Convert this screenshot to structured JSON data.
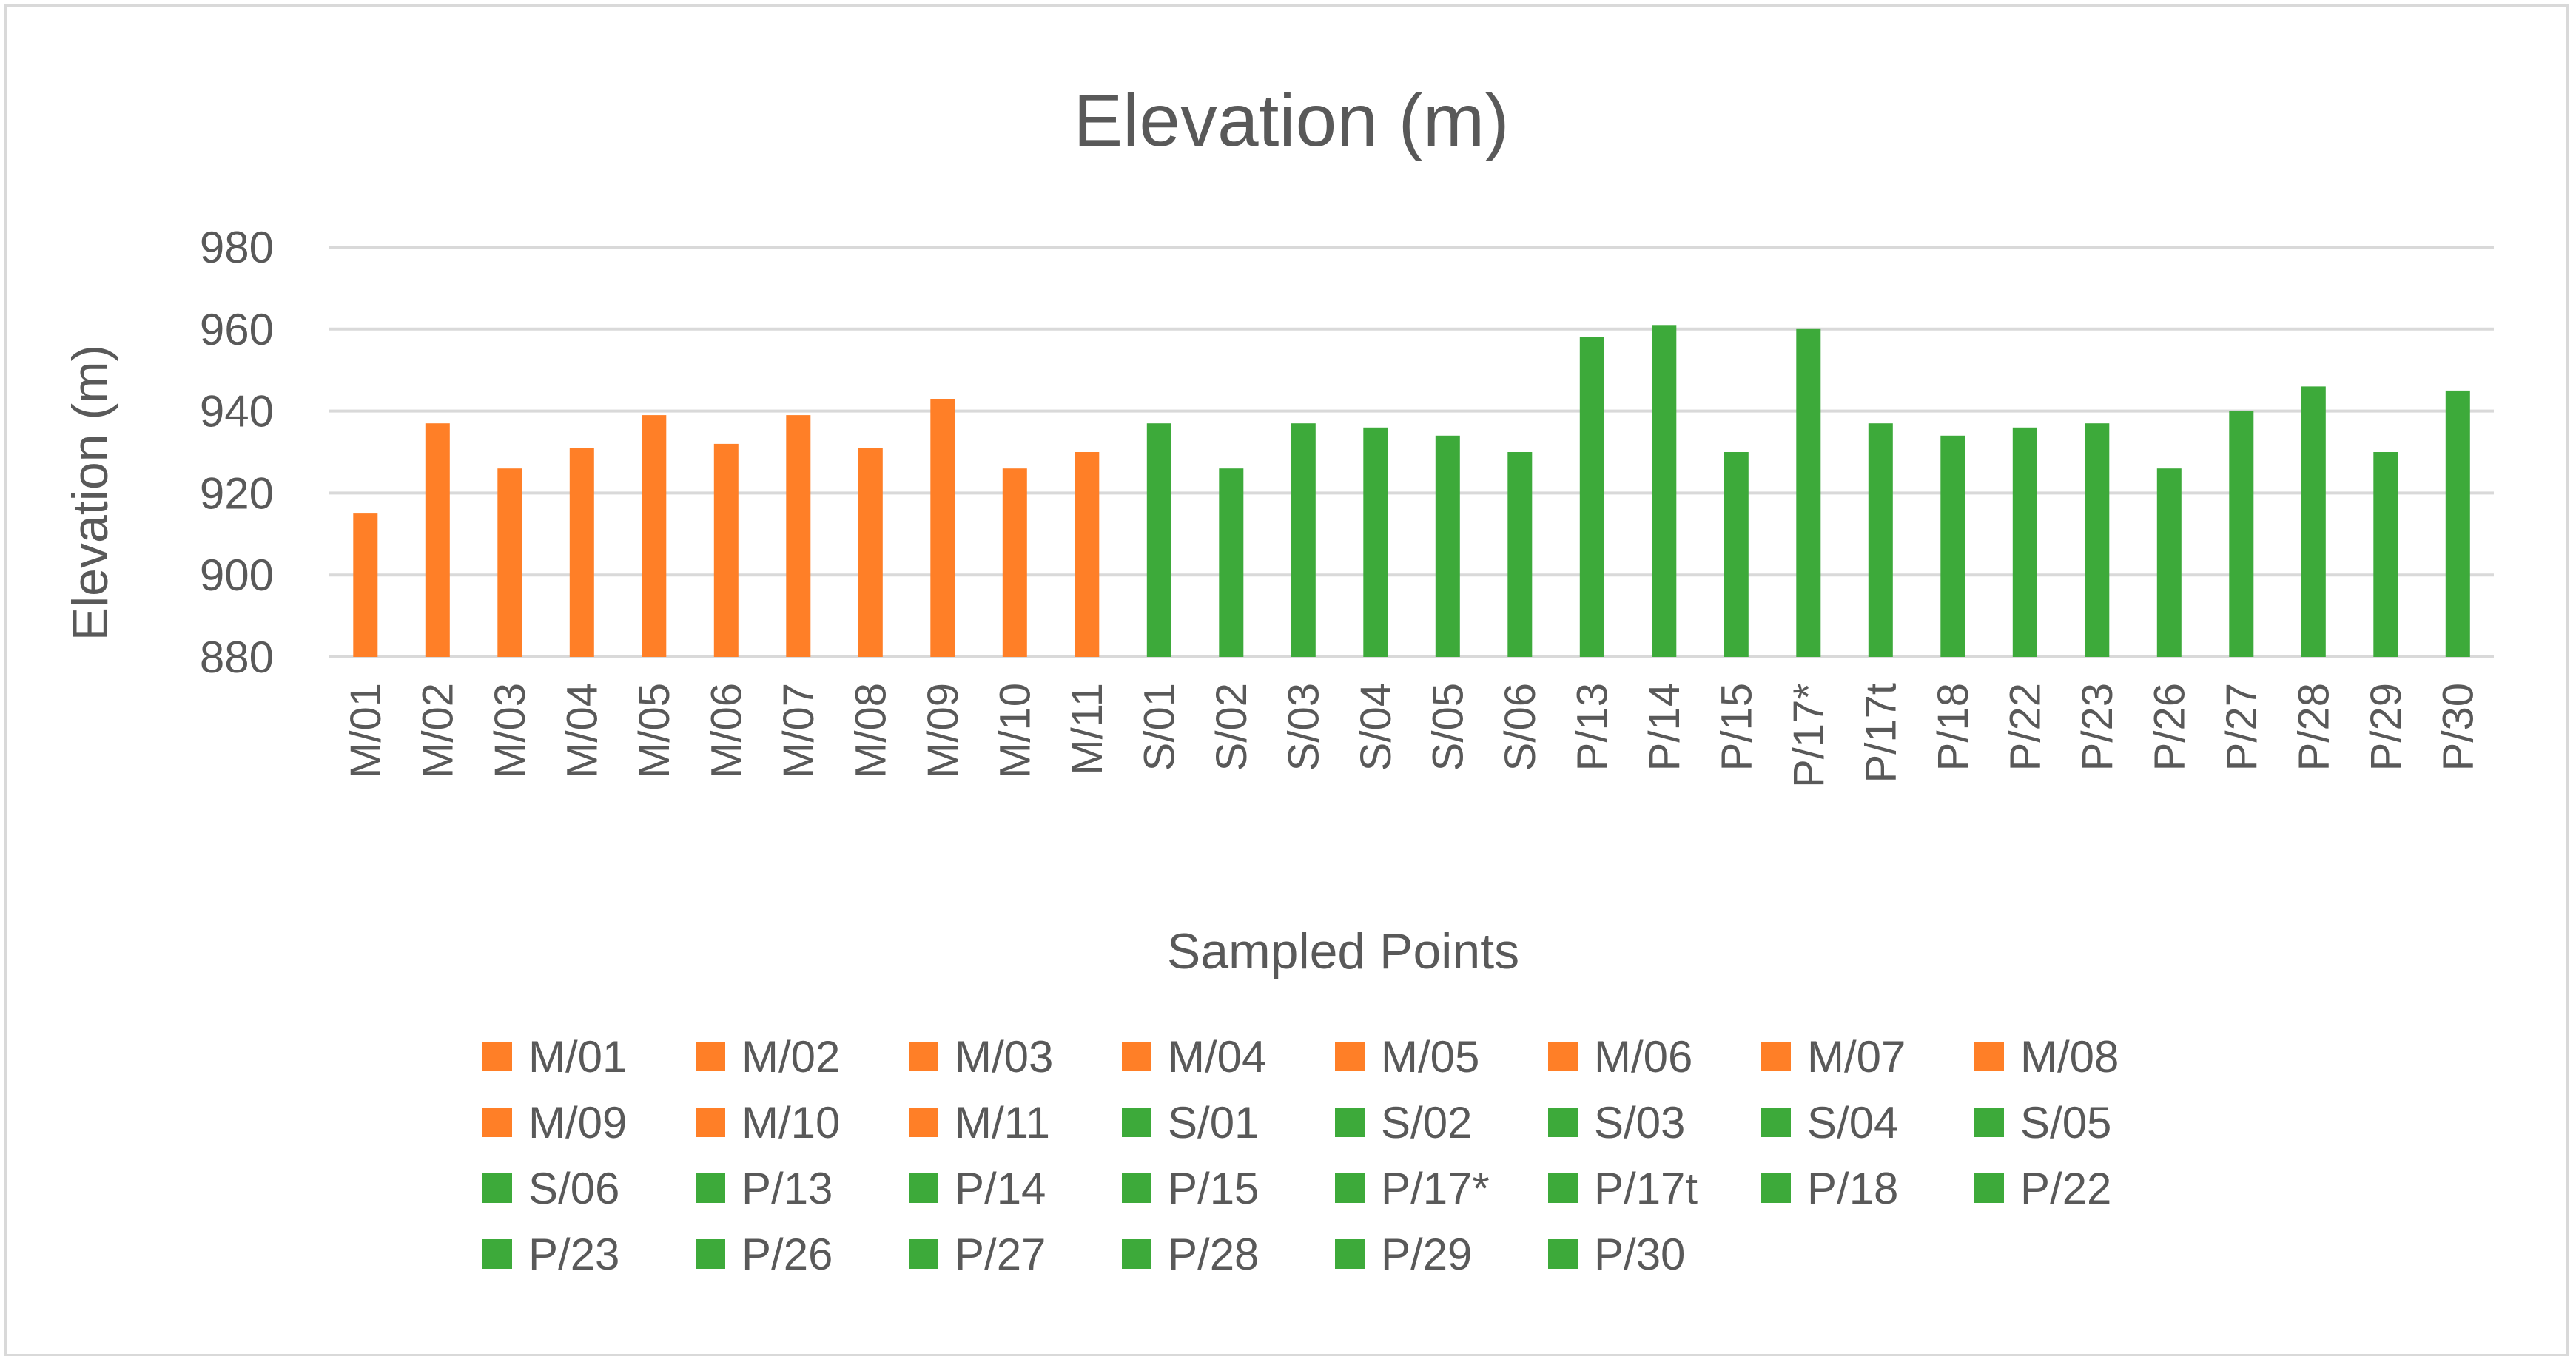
{
  "colors": {
    "M": "#ff7f27",
    "S": "#3daa3a",
    "P": "#3daa3a",
    "text": "#595959",
    "grid": "#d9d9d9"
  },
  "chart_data": {
    "type": "bar",
    "title": "Elevation (m)",
    "xlabel": "Sampled Points",
    "ylabel": "Elevation (m)",
    "ylim": [
      880,
      980
    ],
    "yticks": [
      880,
      900,
      920,
      940,
      960,
      980
    ],
    "grid": true,
    "legend_position": "bottom",
    "categories": [
      "M/01",
      "M/02",
      "M/03",
      "M/04",
      "M/05",
      "M/06",
      "M/07",
      "M/08",
      "M/09",
      "M/10",
      "M/11",
      "S/01",
      "S/02",
      "S/03",
      "S/04",
      "S/05",
      "S/06",
      "P/13",
      "P/14",
      "P/15",
      "P/17*",
      "P/17t",
      "P/18",
      "P/22",
      "P/23",
      "P/26",
      "P/27",
      "P/28",
      "P/29",
      "P/30"
    ],
    "series": [
      {
        "name": "M/01",
        "group": "M",
        "value": 915
      },
      {
        "name": "M/02",
        "group": "M",
        "value": 937
      },
      {
        "name": "M/03",
        "group": "M",
        "value": 926
      },
      {
        "name": "M/04",
        "group": "M",
        "value": 931
      },
      {
        "name": "M/05",
        "group": "M",
        "value": 939
      },
      {
        "name": "M/06",
        "group": "M",
        "value": 932
      },
      {
        "name": "M/07",
        "group": "M",
        "value": 939
      },
      {
        "name": "M/08",
        "group": "M",
        "value": 931
      },
      {
        "name": "M/09",
        "group": "M",
        "value": 943
      },
      {
        "name": "M/10",
        "group": "M",
        "value": 926
      },
      {
        "name": "M/11",
        "group": "M",
        "value": 930
      },
      {
        "name": "S/01",
        "group": "S",
        "value": 937
      },
      {
        "name": "S/02",
        "group": "S",
        "value": 926
      },
      {
        "name": "S/03",
        "group": "S",
        "value": 937
      },
      {
        "name": "S/04",
        "group": "S",
        "value": 936
      },
      {
        "name": "S/05",
        "group": "S",
        "value": 934
      },
      {
        "name": "S/06",
        "group": "S",
        "value": 930
      },
      {
        "name": "P/13",
        "group": "P",
        "value": 958
      },
      {
        "name": "P/14",
        "group": "P",
        "value": 961
      },
      {
        "name": "P/15",
        "group": "P",
        "value": 930
      },
      {
        "name": "P/17*",
        "group": "P",
        "value": 960
      },
      {
        "name": "P/17t",
        "group": "P",
        "value": 937
      },
      {
        "name": "P/18",
        "group": "P",
        "value": 934
      },
      {
        "name": "P/22",
        "group": "P",
        "value": 936
      },
      {
        "name": "P/23",
        "group": "P",
        "value": 937
      },
      {
        "name": "P/26",
        "group": "P",
        "value": 926
      },
      {
        "name": "P/27",
        "group": "P",
        "value": 940
      },
      {
        "name": "P/28",
        "group": "P",
        "value": 946
      },
      {
        "name": "P/29",
        "group": "P",
        "value": 930
      },
      {
        "name": "P/30",
        "group": "P",
        "value": 945
      }
    ]
  }
}
